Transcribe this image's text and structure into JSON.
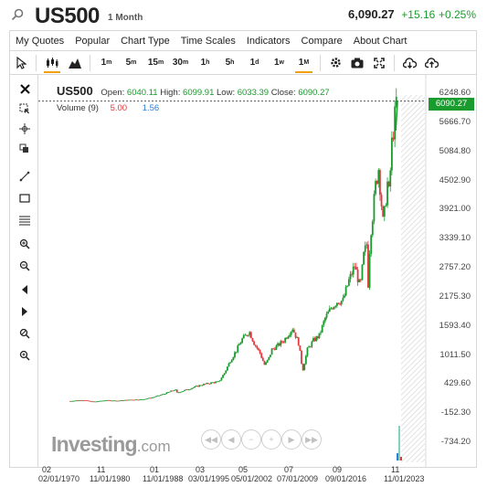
{
  "header": {
    "symbol": "US500",
    "timeframe": "1 Month",
    "last_price": "6,090.27",
    "change": "+15.16",
    "change_pct": "+0.25%"
  },
  "menu": {
    "items": [
      "My Quotes",
      "Popular",
      "Chart Type",
      "Time Scales",
      "Indicators",
      "Compare",
      "About Chart"
    ]
  },
  "toolbar": {
    "intervals": [
      {
        "label": "1",
        "sup": "m"
      },
      {
        "label": "5",
        "sup": "m"
      },
      {
        "label": "15",
        "sup": "m"
      },
      {
        "label": "30",
        "sup": "m"
      },
      {
        "label": "1",
        "sup": "h"
      },
      {
        "label": "5",
        "sup": "h"
      },
      {
        "label": "1",
        "sup": "d"
      },
      {
        "label": "1",
        "sup": "w"
      },
      {
        "label": "1",
        "sup": "M"
      }
    ],
    "active_interval": "1M"
  },
  "legend": {
    "symbol": "US500",
    "open_label": "Open:",
    "open": "6040.11",
    "high_label": "High:",
    "high": "6099.91",
    "low_label": "Low:",
    "low": "6033.39",
    "close_label": "Close:",
    "close": "6090.27",
    "volume_label": "Volume (9)",
    "volume_a": "5.00",
    "volume_b": "1.56"
  },
  "price_tag": "6090.27",
  "brand": {
    "name": "Investing",
    "suffix": ".com"
  },
  "colors": {
    "up": "#1a9b2e",
    "down": "#e0393e",
    "accent": "#f2a000"
  },
  "chart_data": {
    "type": "candlestick",
    "title": "US500",
    "interval": "1 Month",
    "y_ticks": [
      "6248.60",
      "5666.70",
      "5084.80",
      "4502.90",
      "3921.00",
      "3339.10",
      "2757.20",
      "2175.30",
      "1593.40",
      "1011.50",
      "429.60",
      "-152.30",
      "-734.20"
    ],
    "ylim": [
      -734.2,
      6248.6
    ],
    "x_ticks": [
      {
        "top": "02",
        "bottom": "02/01/1970"
      },
      {
        "top": "11",
        "bottom": "11/01/1980"
      },
      {
        "top": "01",
        "bottom": "11/01/1988"
      },
      {
        "top": "03",
        "bottom": "03/01/1995"
      },
      {
        "top": "05",
        "bottom": "05/01/2002"
      },
      {
        "top": "07",
        "bottom": "07/01/2009"
      },
      {
        "top": "09",
        "bottom": "09/01/2016"
      },
      {
        "top": "11",
        "bottom": "11/01/2023"
      }
    ],
    "xlim": [
      1970.0,
      2025.5
    ],
    "series": [
      {
        "name": "US500",
        "points": [
          [
            1970.0,
            90
          ],
          [
            1972.0,
            110
          ],
          [
            1974.0,
            75
          ],
          [
            1976.0,
            105
          ],
          [
            1978.0,
            95
          ],
          [
            1980.0,
            115
          ],
          [
            1982.0,
            120
          ],
          [
            1984.0,
            165
          ],
          [
            1986.0,
            240
          ],
          [
            1987.7,
            320
          ],
          [
            1988.0,
            255
          ],
          [
            1990.0,
            330
          ],
          [
            1992.0,
            410
          ],
          [
            1994.0,
            460
          ],
          [
            1995.0,
            470
          ],
          [
            1996.0,
            650
          ],
          [
            1997.0,
            900
          ],
          [
            1998.0,
            1100
          ],
          [
            1999.0,
            1330
          ],
          [
            2000.2,
            1480
          ],
          [
            2001.0,
            1250
          ],
          [
            2002.0,
            1050
          ],
          [
            2002.8,
            800
          ],
          [
            2003.5,
            950
          ],
          [
            2004.0,
            1120
          ],
          [
            2005.0,
            1200
          ],
          [
            2006.0,
            1300
          ],
          [
            2007.5,
            1550
          ],
          [
            2008.5,
            1250
          ],
          [
            2009.2,
            700
          ],
          [
            2010.0,
            1120
          ],
          [
            2011.0,
            1300
          ],
          [
            2012.0,
            1400
          ],
          [
            2013.0,
            1750
          ],
          [
            2014.0,
            1950
          ],
          [
            2015.0,
            2080
          ],
          [
            2016.0,
            2100
          ],
          [
            2017.0,
            2500
          ],
          [
            2018.0,
            2800
          ],
          [
            2018.9,
            2350
          ],
          [
            2019.5,
            3000
          ],
          [
            2020.0,
            3230
          ],
          [
            2020.2,
            2300
          ],
          [
            2020.6,
            3400
          ],
          [
            2021.0,
            3800
          ],
          [
            2021.5,
            4400
          ],
          [
            2022.0,
            4750
          ],
          [
            2022.8,
            3600
          ],
          [
            2023.5,
            4450
          ],
          [
            2023.8,
            4200
          ],
          [
            2024.2,
            5200
          ],
          [
            2024.6,
            5600
          ],
          [
            2025.0,
            6090
          ]
        ]
      }
    ],
    "current_price": 6090.27
  }
}
